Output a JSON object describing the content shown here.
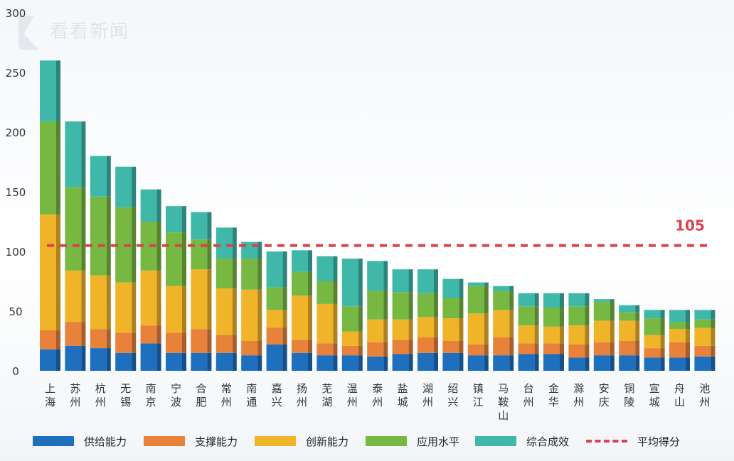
{
  "watermark": {
    "text": "看看新闻"
  },
  "chart_data": {
    "type": "bar",
    "stacked": true,
    "ylim": [
      0,
      300
    ],
    "yticks": [
      0,
      50,
      100,
      150,
      200,
      250,
      300
    ],
    "categories": [
      "上海",
      "苏州",
      "杭州",
      "无锡",
      "南京",
      "宁波",
      "合肥",
      "常州",
      "南通",
      "嘉兴",
      "扬州",
      "芜湖",
      "温州",
      "泰州",
      "盐城",
      "湖州",
      "绍兴",
      "镇江",
      "马鞍山",
      "台州",
      "金华",
      "滁州",
      "安庆",
      "铜陵",
      "宣城",
      "舟山",
      "池州"
    ],
    "series": [
      {
        "name": "供给能力",
        "color": "#1f6fbf",
        "values": [
          18,
          21,
          19,
          15,
          23,
          15,
          15,
          15,
          13,
          22,
          15,
          13,
          13,
          12,
          14,
          15,
          15,
          13,
          13,
          14,
          14,
          11,
          13,
          13,
          11,
          11,
          12
        ]
      },
      {
        "name": "支撑能力",
        "color": "#e8823a",
        "values": [
          16,
          20,
          16,
          17,
          15,
          17,
          20,
          15,
          12,
          14,
          11,
          10,
          8,
          12,
          12,
          13,
          10,
          9,
          15,
          9,
          9,
          11,
          11,
          12,
          8,
          13,
          9
        ]
      },
      {
        "name": "创新能力",
        "color": "#f0b429",
        "values": [
          97,
          43,
          45,
          42,
          46,
          39,
          50,
          39,
          43,
          15,
          37,
          33,
          12,
          19,
          17,
          17,
          19,
          26,
          23,
          15,
          14,
          16,
          18,
          17,
          11,
          11,
          15
        ]
      },
      {
        "name": "应用水平",
        "color": "#77b843",
        "values": [
          78,
          70,
          66,
          63,
          41,
          45,
          25,
          25,
          26,
          19,
          20,
          19,
          21,
          24,
          23,
          20,
          17,
          23,
          16,
          16,
          16,
          16,
          16,
          7,
          14,
          6,
          7
        ]
      },
      {
        "name": "综合成效",
        "color": "#3fb8aa",
        "values": [
          51,
          55,
          34,
          34,
          27,
          22,
          23,
          26,
          14,
          30,
          18,
          21,
          40,
          25,
          19,
          20,
          16,
          3,
          4,
          11,
          12,
          11,
          2,
          6,
          7,
          10,
          8
        ]
      }
    ],
    "average": {
      "name": "平均得分",
      "value": 105,
      "label": "105",
      "color": "#d9434c"
    }
  }
}
